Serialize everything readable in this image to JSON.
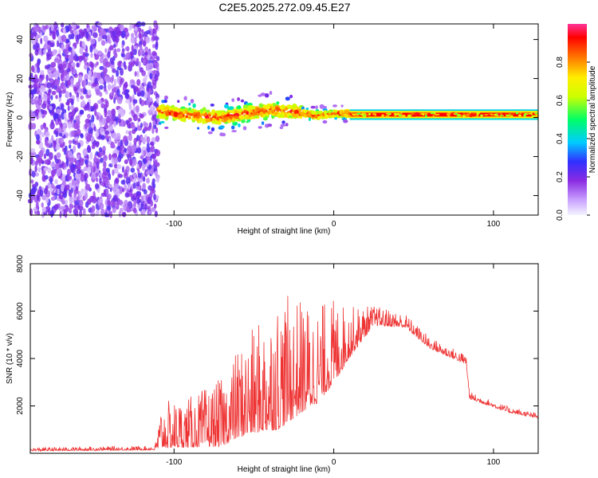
{
  "title": "C2E5.2025.272.09.45.E27",
  "chart_data": [
    {
      "type": "heatmap",
      "xlabel": "Height of straight line (km)",
      "ylabel": "Frequency (Hz)",
      "xlim": [
        -190,
        128
      ],
      "ylim": [
        -50,
        48
      ],
      "xticks": [
        -100,
        0,
        100
      ],
      "yticks": [
        -40,
        -20,
        0,
        20,
        40
      ],
      "colorbar": {
        "label": "Normalized spectral amplitude",
        "range": [
          0,
          1
        ],
        "ticks": [
          "0.0",
          "0.2",
          "0.4",
          "0.6",
          "0.8"
        ]
      },
      "regions": [
        {
          "name": "noise",
          "x": [
            -190,
            -110
          ],
          "y": [
            -50,
            48
          ],
          "amplitude": [
            0.05,
            0.25
          ]
        },
        {
          "name": "scattered-trace",
          "x": [
            -110,
            10
          ],
          "y": [
            -4,
            8
          ],
          "amplitude": [
            0.3,
            0.9
          ]
        },
        {
          "name": "steady-trace",
          "x": [
            10,
            128
          ],
          "y": [
            0,
            3
          ],
          "amplitude": [
            0.8,
            1.0
          ]
        }
      ],
      "trace_center_hz": [
        [
          -110,
          3
        ],
        [
          -90,
          1
        ],
        [
          -70,
          0
        ],
        [
          -55,
          2
        ],
        [
          -40,
          4
        ],
        [
          -25,
          3
        ],
        [
          -10,
          1
        ],
        [
          0,
          2
        ],
        [
          20,
          2
        ],
        [
          60,
          2
        ],
        [
          100,
          2
        ],
        [
          128,
          2
        ]
      ]
    },
    {
      "type": "line",
      "xlabel": "Height of straight line (km)",
      "ylabel": "SNR (10 * v/v)",
      "xlim": [
        -190,
        128
      ],
      "ylim": [
        0,
        8000
      ],
      "xticks": [
        -100,
        0,
        100
      ],
      "yticks": [
        2000,
        4000,
        6000,
        8000
      ],
      "color": "#ee3333",
      "envelope": [
        {
          "x": -190,
          "base": 150,
          "amp": 120
        },
        {
          "x": -112,
          "base": 200,
          "amp": 150
        },
        {
          "x": -108,
          "base": 900,
          "amp": 1600
        },
        {
          "x": -90,
          "base": 1000,
          "amp": 1800
        },
        {
          "x": -70,
          "base": 1300,
          "amp": 2400
        },
        {
          "x": -60,
          "base": 2000,
          "amp": 3200
        },
        {
          "x": -45,
          "base": 2600,
          "amp": 4000
        },
        {
          "x": -35,
          "base": 3000,
          "amp": 4800
        },
        {
          "x": -20,
          "base": 3400,
          "amp": 4000
        },
        {
          "x": -10,
          "base": 3600,
          "amp": 3500
        },
        {
          "x": 0,
          "base": 4200,
          "amp": 3000
        },
        {
          "x": 10,
          "base": 4800,
          "amp": 1800
        },
        {
          "x": 25,
          "base": 5700,
          "amp": 700
        },
        {
          "x": 45,
          "base": 5500,
          "amp": 500
        },
        {
          "x": 60,
          "base": 4600,
          "amp": 400
        },
        {
          "x": 83,
          "base": 3900,
          "amp": 350
        },
        {
          "x": 85,
          "base": 2400,
          "amp": 250
        },
        {
          "x": 110,
          "base": 1800,
          "amp": 200
        },
        {
          "x": 128,
          "base": 1550,
          "amp": 180
        }
      ]
    }
  ]
}
